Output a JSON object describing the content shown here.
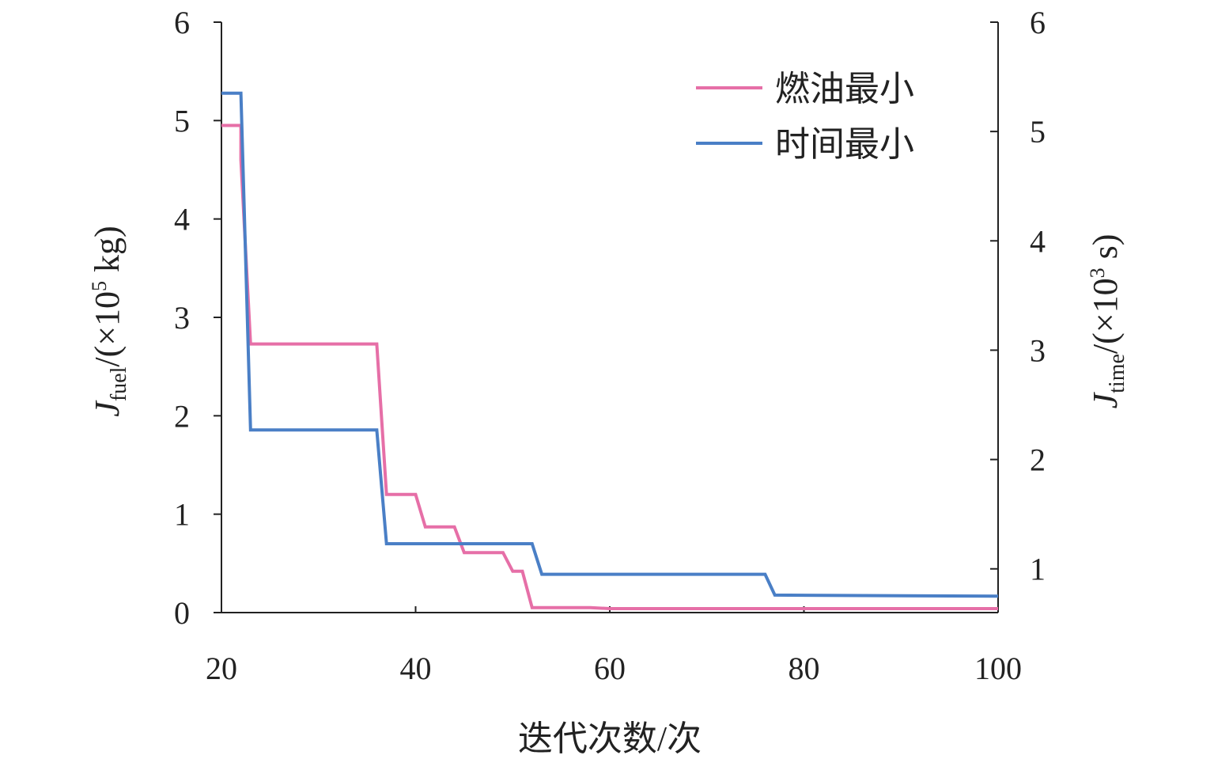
{
  "chart_data": {
    "type": "line",
    "title": "",
    "xlabel": "迭代次数/次",
    "ylabel_left": {
      "main": "J",
      "sub": "fuel",
      "unit_prefix": "/(×10",
      "sup": "5",
      "unit_suffix": " kg)"
    },
    "ylabel_right": {
      "main": "J",
      "sub": "time",
      "unit_prefix": "/(×10",
      "sup": "3",
      "unit_suffix": " s)"
    },
    "xlim": [
      20,
      100
    ],
    "ylim_left": [
      0,
      6
    ],
    "ylim_right": [
      0.6,
      6
    ],
    "x_ticks": [
      "20",
      "40",
      "60",
      "80",
      "100"
    ],
    "y_left_ticks": [
      "0",
      "1",
      "2",
      "3",
      "4",
      "5",
      "6"
    ],
    "y_right_ticks": [
      "1",
      "2",
      "3",
      "4",
      "5",
      "6"
    ],
    "grid": false,
    "legend_position": "top-right",
    "series": [
      {
        "name": "燃油最小",
        "axis": "left",
        "color": "#e66fa7",
        "x": [
          20,
          22,
          22,
          23,
          36,
          37,
          40,
          41,
          44,
          45,
          49,
          50,
          51,
          52,
          58,
          60,
          100
        ],
        "y": [
          4.95,
          4.95,
          4.6,
          2.73,
          2.73,
          1.2,
          1.2,
          0.87,
          0.87,
          0.61,
          0.61,
          0.42,
          0.42,
          0.05,
          0.05,
          0.04,
          0.04
        ]
      },
      {
        "name": "时间最小",
        "axis": "right",
        "color": "#4a7fc6",
        "x": [
          20,
          22,
          23,
          36,
          37,
          52,
          53,
          76,
          77,
          100
        ],
        "y": [
          5.35,
          5.35,
          2.27,
          2.27,
          1.23,
          1.23,
          0.95,
          0.95,
          0.76,
          0.75
        ]
      }
    ]
  }
}
